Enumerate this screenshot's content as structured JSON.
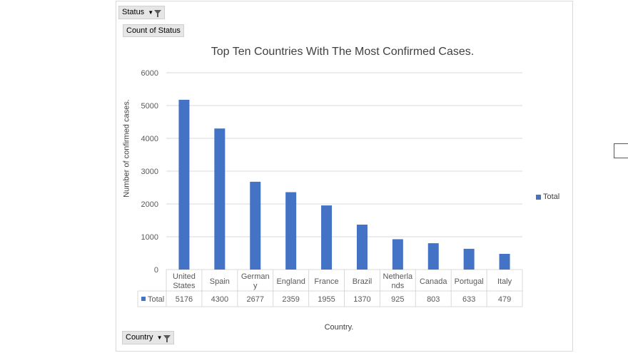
{
  "pivot": {
    "filter_field": "Status",
    "value_field": "Count of Status",
    "axis_field": "Country"
  },
  "chart_data": {
    "type": "bar",
    "title": "Top Ten Countries With The Most Confirmed Cases.",
    "xlabel": "Country.",
    "ylabel": "Number of confirmed cases.",
    "ylim": [
      0,
      6000
    ],
    "yticks": [
      0,
      1000,
      2000,
      3000,
      4000,
      5000,
      6000
    ],
    "category_labels": [
      [
        "United",
        "States"
      ],
      [
        "Spain"
      ],
      [
        "German",
        "y"
      ],
      [
        "England"
      ],
      [
        "France"
      ],
      [
        "Brazil"
      ],
      [
        "Netherla",
        "nds"
      ],
      [
        "Canada"
      ],
      [
        "Portugal"
      ],
      [
        "Italy"
      ]
    ],
    "series": [
      {
        "name": "Total",
        "values": [
          5176,
          4300,
          2677,
          2359,
          1955,
          1370,
          925,
          803,
          633,
          479
        ]
      }
    ],
    "table_values": [
      "5176",
      "4300",
      "2677",
      "2359",
      "1955",
      "1370",
      "925",
      "803",
      "633",
      "479"
    ],
    "legend_position": "right",
    "grid": true,
    "color": "#4472c4"
  }
}
